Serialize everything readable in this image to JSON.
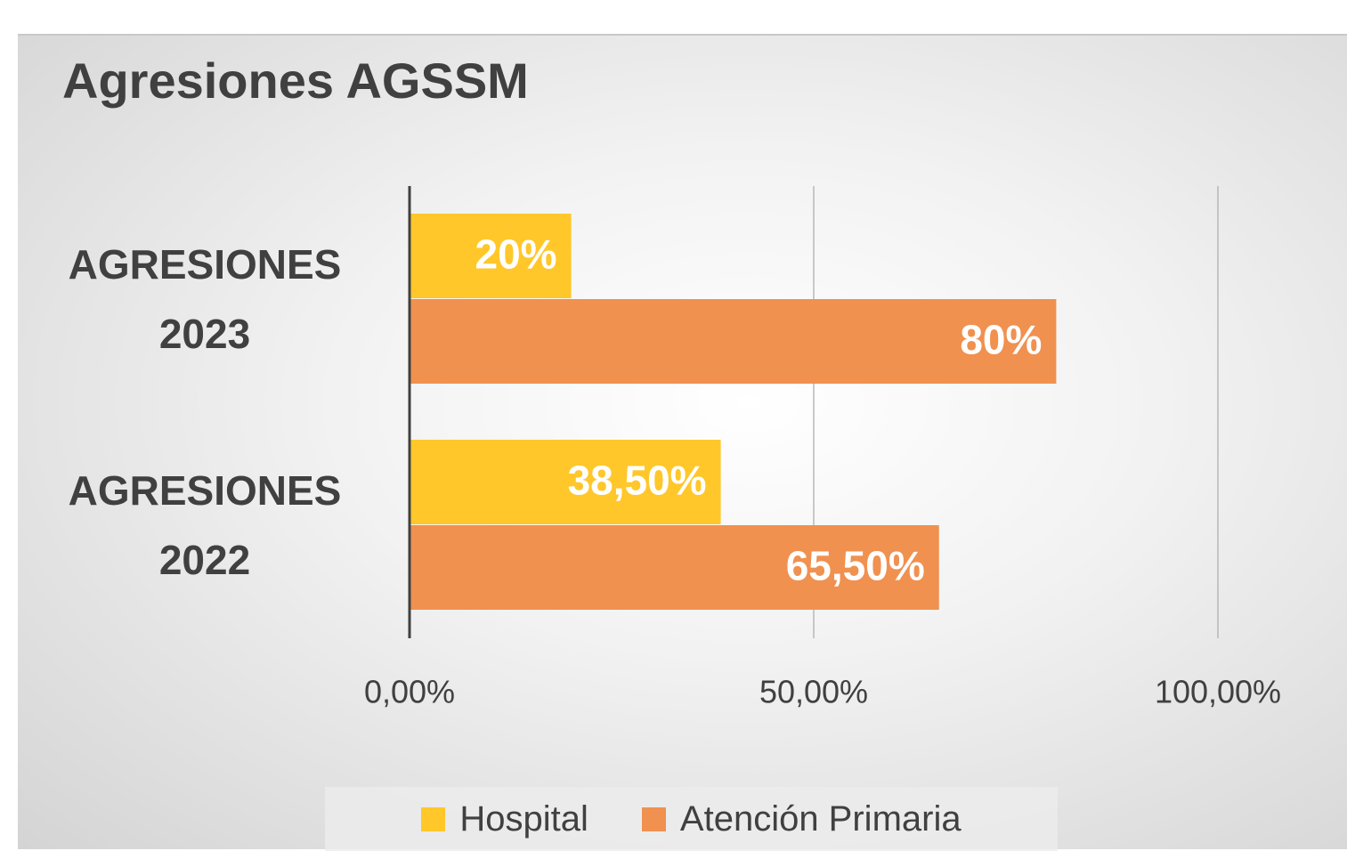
{
  "chart_data": {
    "type": "bar",
    "orientation": "horizontal",
    "title": "Agresiones AGSSM",
    "categories": [
      "AGRESIONES 2023",
      "AGRESIONES 2022"
    ],
    "series": [
      {
        "name": "Hospital",
        "color": "#ffc729",
        "values": [
          20,
          38.5
        ],
        "value_labels": [
          "20%",
          "38,50%"
        ]
      },
      {
        "name": "Atención Primaria",
        "color": "#f09150",
        "values": [
          80,
          65.5
        ],
        "value_labels": [
          "80%",
          "65,50%"
        ]
      }
    ],
    "xlim": [
      0,
      100
    ],
    "xticks": [
      {
        "value": 0,
        "label": "0,00%"
      },
      {
        "value": 50,
        "label": "50,00%"
      },
      {
        "value": 100,
        "label": "100,00%"
      }
    ],
    "grid": true,
    "legend": "bottom"
  }
}
